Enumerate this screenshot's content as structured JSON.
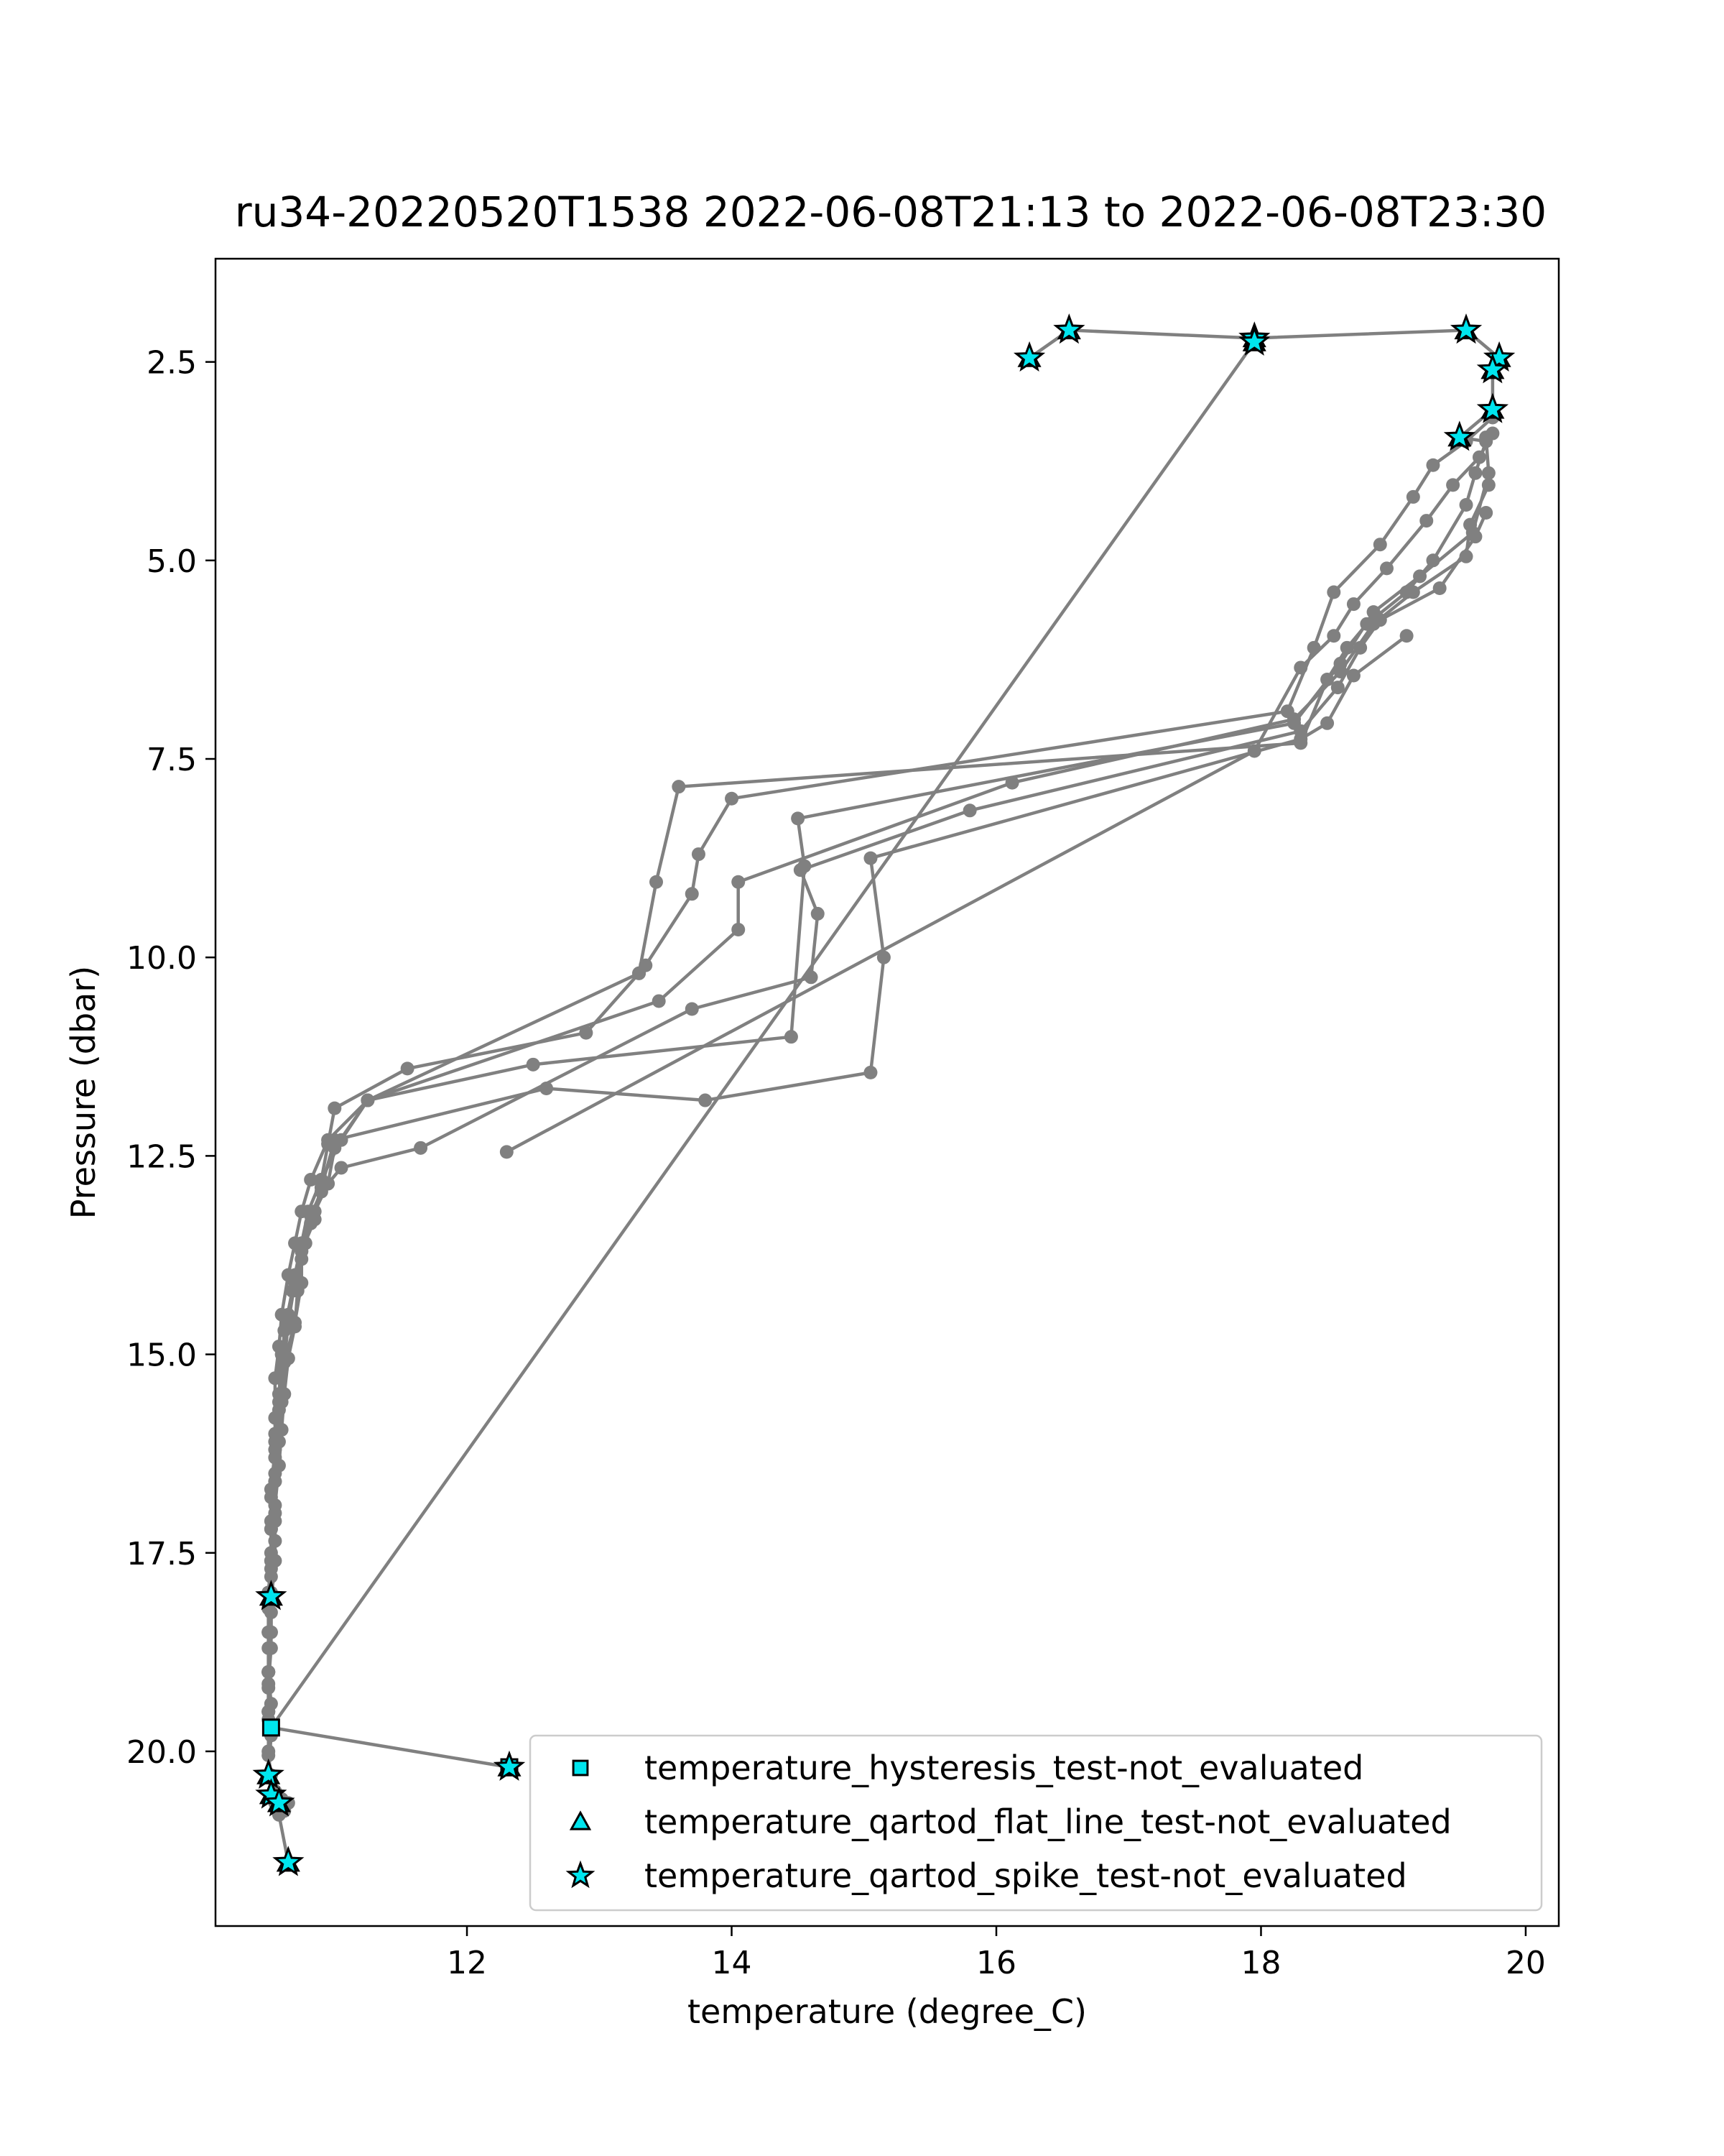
{
  "chart_data": {
    "type": "line",
    "title": "ru34-20220520T1538 2022-06-08T21:13 to 2022-06-08T23:30",
    "xlabel": "temperature (degree_C)",
    "ylabel": "Pressure (dbar)",
    "xlim": [
      10.1,
      20.25
    ],
    "ylim": [
      22.2,
      1.2
    ],
    "y_inverted": true,
    "xticks": [
      12,
      14,
      16,
      18,
      20
    ],
    "xtick_labels": [
      "12",
      "14",
      "16",
      "18",
      "20"
    ],
    "yticks": [
      2.5,
      5.0,
      7.5,
      10.0,
      12.5,
      15.0,
      17.5,
      20.0
    ],
    "ytick_labels": [
      "2.5",
      "5.0",
      "7.5",
      "10.0",
      "12.5",
      "15.0",
      "17.5",
      "20.0"
    ],
    "grid": false,
    "legend_position": "lower-right",
    "colors": {
      "profile_line": "#808080",
      "flag_fill": "#00e5ee",
      "flag_edge": "#000000"
    },
    "series": [
      {
        "x": [
          16.25,
          16.55,
          17.95,
          19.55,
          19.8,
          19.75,
          19.75,
          19.5,
          19.7,
          19.62,
          19.55,
          19.3,
          19.1,
          18.8,
          18.65,
          18.5,
          18.3,
          13.6,
          13.43,
          13.3,
          12.9,
          11.55,
          11.0,
          10.95,
          10.9,
          10.85,
          10.75,
          10.75,
          10.7,
          10.62,
          10.6,
          10.58,
          10.55,
          10.55,
          10.55,
          10.52,
          10.52,
          10.5,
          10.52,
          10.52,
          10.5
        ],
        "y": [
          2.45,
          2.1,
          2.2,
          2.1,
          2.45,
          2.6,
          3.1,
          3.45,
          3.5,
          3.9,
          4.3,
          5.0,
          5.4,
          5.8,
          6.1,
          6.5,
          7.3,
          7.85,
          9.05,
          10.2,
          10.95,
          11.4,
          11.9,
          12.35,
          12.8,
          13.3,
          13.7,
          14.1,
          14.6,
          15.1,
          15.6,
          16.1,
          16.6,
          17.1,
          17.6,
          18.1,
          18.5,
          19.0,
          19.4,
          19.8,
          20.3
        ]
      },
      {
        "x": [
          19.75,
          19.55,
          19.3,
          19.15,
          18.9,
          18.55,
          18.4,
          18.2,
          14.0,
          13.75,
          13.7,
          13.35,
          13.3,
          11.25,
          10.95,
          10.82,
          10.75,
          10.7,
          10.65,
          10.6,
          10.58,
          10.55,
          10.55,
          10.55,
          10.52,
          10.52,
          10.52,
          10.5,
          10.5,
          10.5,
          10.5
        ],
        "y": [
          3.2,
          3.5,
          3.8,
          4.2,
          4.8,
          5.4,
          6.1,
          6.9,
          8.0,
          8.7,
          9.2,
          10.1,
          10.2,
          11.8,
          12.3,
          12.8,
          13.2,
          13.6,
          14.0,
          14.5,
          14.9,
          15.3,
          15.8,
          16.3,
          16.8,
          17.2,
          17.6,
          18.0,
          18.5,
          19.0,
          19.5
        ]
      },
      {
        "x": [
          19.7,
          19.72,
          19.6,
          19.2,
          18.85,
          18.6,
          18.25,
          14.5,
          14.55,
          14.45,
          12.5,
          11.25,
          11.05,
          10.9,
          10.8,
          10.75,
          10.7,
          10.65,
          10.6,
          10.58,
          10.55,
          10.55,
          10.55,
          10.52,
          10.52,
          10.52,
          10.5,
          10.5,
          10.5
        ],
        "y": [
          3.45,
          3.9,
          4.65,
          5.2,
          5.65,
          6.3,
          7.05,
          8.25,
          8.85,
          11.0,
          11.35,
          11.8,
          12.3,
          12.8,
          13.2,
          13.6,
          14.0,
          14.5,
          15.0,
          15.5,
          16.0,
          16.5,
          17.0,
          17.5,
          18.0,
          18.5,
          19.0,
          19.5,
          20.0
        ]
      },
      {
        "x": [
          19.72,
          19.58,
          19.55,
          19.15,
          18.85,
          18.6,
          18.25,
          16.12,
          14.05,
          14.05,
          13.45,
          11.25,
          11.0,
          10.95,
          10.85,
          10.78,
          10.7,
          10.65,
          10.62,
          10.58,
          10.55,
          10.55,
          10.52,
          10.52,
          10.5,
          10.5,
          10.5,
          10.5
        ],
        "y": [
          4.05,
          4.55,
          4.95,
          5.4,
          5.8,
          6.4,
          7.0,
          7.8,
          9.05,
          9.65,
          10.55,
          11.8,
          12.4,
          12.85,
          13.2,
          13.6,
          14.1,
          14.6,
          15.1,
          15.6,
          16.1,
          16.6,
          17.1,
          17.6,
          18.0,
          18.5,
          19.0,
          19.5
        ]
      },
      {
        "x": [
          19.7,
          19.62,
          19.35,
          18.9,
          18.75,
          18.58,
          18.3,
          15.8,
          14.52,
          14.65,
          14.6,
          13.7,
          11.65,
          11.05,
          10.9,
          10.82,
          10.75,
          10.68,
          10.62,
          10.6,
          10.58,
          10.55,
          10.52,
          10.52,
          10.52,
          10.5,
          10.5,
          10.5
        ],
        "y": [
          4.4,
          4.7,
          5.35,
          5.75,
          6.1,
          6.6,
          7.15,
          8.15,
          8.9,
          9.45,
          10.25,
          10.65,
          12.4,
          12.65,
          12.95,
          13.25,
          13.7,
          14.2,
          14.7,
          15.2,
          15.7,
          16.2,
          16.7,
          17.2,
          17.7,
          18.2,
          18.7,
          19.2
        ]
      },
      {
        "x": [
          19.1,
          18.7,
          18.5,
          18.3,
          15.05,
          15.15,
          15.05,
          13.8,
          12.6,
          11.0,
          10.9,
          10.82,
          10.75,
          10.72,
          10.7,
          10.65,
          10.62,
          10.6,
          10.58,
          10.55,
          10.55,
          10.52,
          10.52,
          10.52,
          10.5,
          10.5
        ],
        "y": [
          5.95,
          6.45,
          7.05,
          7.25,
          8.75,
          10.0,
          11.45,
          11.8,
          11.65,
          12.3,
          12.9,
          13.35,
          13.8,
          14.2,
          14.65,
          15.05,
          15.5,
          15.95,
          16.4,
          16.9,
          17.35,
          17.8,
          18.25,
          18.7,
          19.15,
          19.6
        ]
      },
      {
        "x": [
          19.75,
          19.65,
          19.45,
          19.25,
          18.95,
          18.7,
          18.55,
          18.3,
          17.95,
          12.3
        ],
        "y": [
          3.4,
          3.7,
          4.05,
          4.5,
          5.1,
          5.55,
          5.95,
          6.35,
          7.4,
          12.45
        ]
      },
      {
        "x": [
          17.95,
          10.52,
          12.32
        ],
        "y": [
          2.25,
          19.7,
          20.2
        ]
      },
      {
        "x": [
          10.5,
          10.52,
          10.55,
          10.6,
          10.65,
          10.62,
          10.55,
          10.58,
          10.65
        ],
        "y": [
          20.05,
          20.3,
          20.5,
          20.6,
          20.65,
          20.75,
          20.65,
          20.8,
          21.4
        ]
      }
    ],
    "flags": [
      {
        "name": "temperature_hysteresis_test-not_evaluated",
        "marker": "square",
        "points": [
          [
            10.52,
            19.7
          ],
          [
            12.32,
            20.2
          ]
        ]
      },
      {
        "name": "temperature_qartod_flat_line_test-not_evaluated",
        "marker": "triangle",
        "points": [
          [
            16.25,
            2.45
          ],
          [
            16.55,
            2.1
          ],
          [
            17.95,
            2.2
          ],
          [
            17.95,
            2.25
          ],
          [
            19.55,
            2.1
          ],
          [
            19.8,
            2.45
          ],
          [
            19.75,
            2.6
          ],
          [
            19.75,
            3.1
          ],
          [
            19.5,
            3.45
          ],
          [
            10.52,
            18.05
          ],
          [
            10.5,
            20.3
          ],
          [
            10.52,
            20.55
          ],
          [
            10.58,
            20.65
          ],
          [
            10.65,
            21.4
          ],
          [
            12.32,
            20.2
          ]
        ]
      },
      {
        "name": "temperature_qartod_spike_test-not_evaluated",
        "marker": "star",
        "points": [
          [
            16.25,
            2.45
          ],
          [
            16.55,
            2.1
          ],
          [
            17.95,
            2.2
          ],
          [
            17.95,
            2.25
          ],
          [
            19.55,
            2.1
          ],
          [
            19.8,
            2.45
          ],
          [
            19.75,
            2.6
          ],
          [
            19.75,
            3.1
          ],
          [
            19.5,
            3.45
          ],
          [
            10.52,
            18.05
          ],
          [
            10.5,
            20.3
          ],
          [
            10.52,
            20.55
          ],
          [
            10.58,
            20.65
          ],
          [
            10.65,
            21.4
          ],
          [
            12.32,
            20.2
          ]
        ]
      }
    ]
  }
}
